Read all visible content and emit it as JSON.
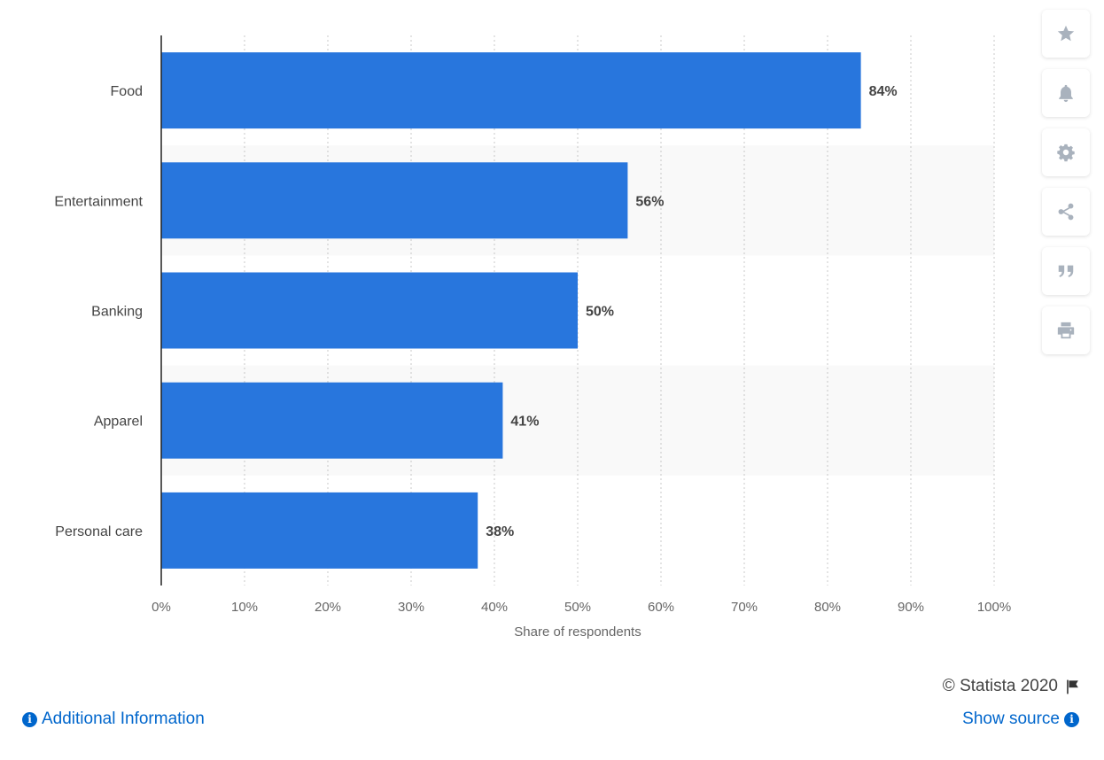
{
  "chart_data": {
    "type": "bar",
    "orientation": "horizontal",
    "categories": [
      "Food",
      "Entertainment",
      "Banking",
      "Apparel",
      "Personal care"
    ],
    "values": [
      84,
      56,
      50,
      41,
      38
    ],
    "value_suffix": "%",
    "xlabel": "Share of respondents",
    "ylabel": "",
    "xlim": [
      0,
      100
    ],
    "ticks": [
      "0%",
      "10%",
      "20%",
      "30%",
      "40%",
      "50%",
      "60%",
      "70%",
      "80%",
      "90%",
      "100%"
    ],
    "bar_color": "#2876dd",
    "grid": "vertical dotted",
    "alternating_row_shading": true
  },
  "toolbar": {
    "icons": [
      "star-icon",
      "bell-icon",
      "gear-icon",
      "share-icon",
      "quote-icon",
      "print-icon"
    ]
  },
  "footer": {
    "credit": "© Statista 2020",
    "additional_info": "Additional Information",
    "show_source": "Show source"
  },
  "colors": {
    "bar": "#2876dd",
    "link": "#0066cc",
    "icon": "#a9b2bd"
  }
}
